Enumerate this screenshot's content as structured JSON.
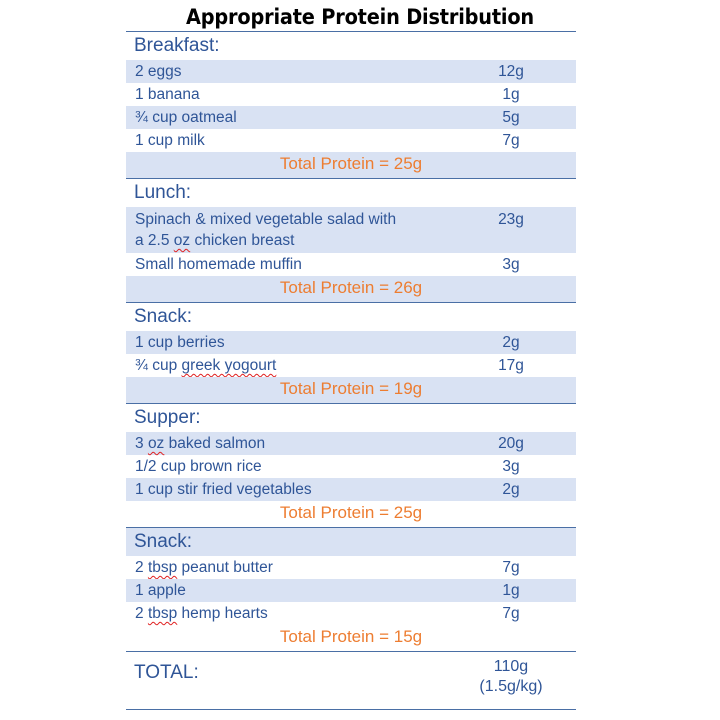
{
  "title": "Appropriate Protein Distribution",
  "sections": [
    {
      "name": "Breakfast:",
      "items": [
        {
          "food": "2 eggs",
          "protein": "12g"
        },
        {
          "food": "1 banana",
          "protein": "1g"
        },
        {
          "food": "¾ cup oatmeal",
          "protein": "5g"
        },
        {
          "food": "1 cup milk",
          "protein": "7g"
        }
      ],
      "total": "Total Protein = 25g"
    },
    {
      "name": "Lunch:",
      "items": [
        {
          "food_line1": "Spinach & mixed vegetable salad with",
          "food_pre": "a 2.5 ",
          "food_sq": "oz",
          "food_post": " chicken breast",
          "protein": "23g"
        },
        {
          "food": "Small homemade muffin",
          "protein": "3g"
        }
      ],
      "total": "Total Protein = 26g"
    },
    {
      "name": "Snack:",
      "items": [
        {
          "food": "1 cup berries",
          "protein": "2g"
        },
        {
          "food_pre": "¾ cup ",
          "food_sq": "greek yogourt",
          "food_post": "",
          "protein": "17g"
        }
      ],
      "total": "Total Protein = 19g"
    },
    {
      "name": "Supper:",
      "items": [
        {
          "food_pre": "3 ",
          "food_sq": "oz",
          "food_post": " baked salmon",
          "protein": "20g"
        },
        {
          "food": "1/2 cup brown rice",
          "protein": "3g"
        },
        {
          "food": "1 cup stir fried vegetables",
          "protein": "2g"
        }
      ],
      "total": "Total Protein = 25g"
    },
    {
      "name": "Snack:",
      "items": [
        {
          "food_pre": "2 ",
          "food_sq": "tbsp",
          "food_post": " peanut butter",
          "protein": "7g"
        },
        {
          "food": "1 apple",
          "protein": "1g"
        },
        {
          "food_pre": "2 ",
          "food_sq": "tbsp",
          "food_post": " hemp hearts",
          "protein": "7g"
        }
      ],
      "total": "Total Protein = 15g"
    }
  ],
  "grand_total": {
    "label": "TOTAL:",
    "value": "110g",
    "per_kg": "(1.5g/kg)"
  },
  "colors": {
    "text_blue": "#2f5597",
    "shade": "#d9e2f3",
    "total_orange": "#ed7d31"
  }
}
